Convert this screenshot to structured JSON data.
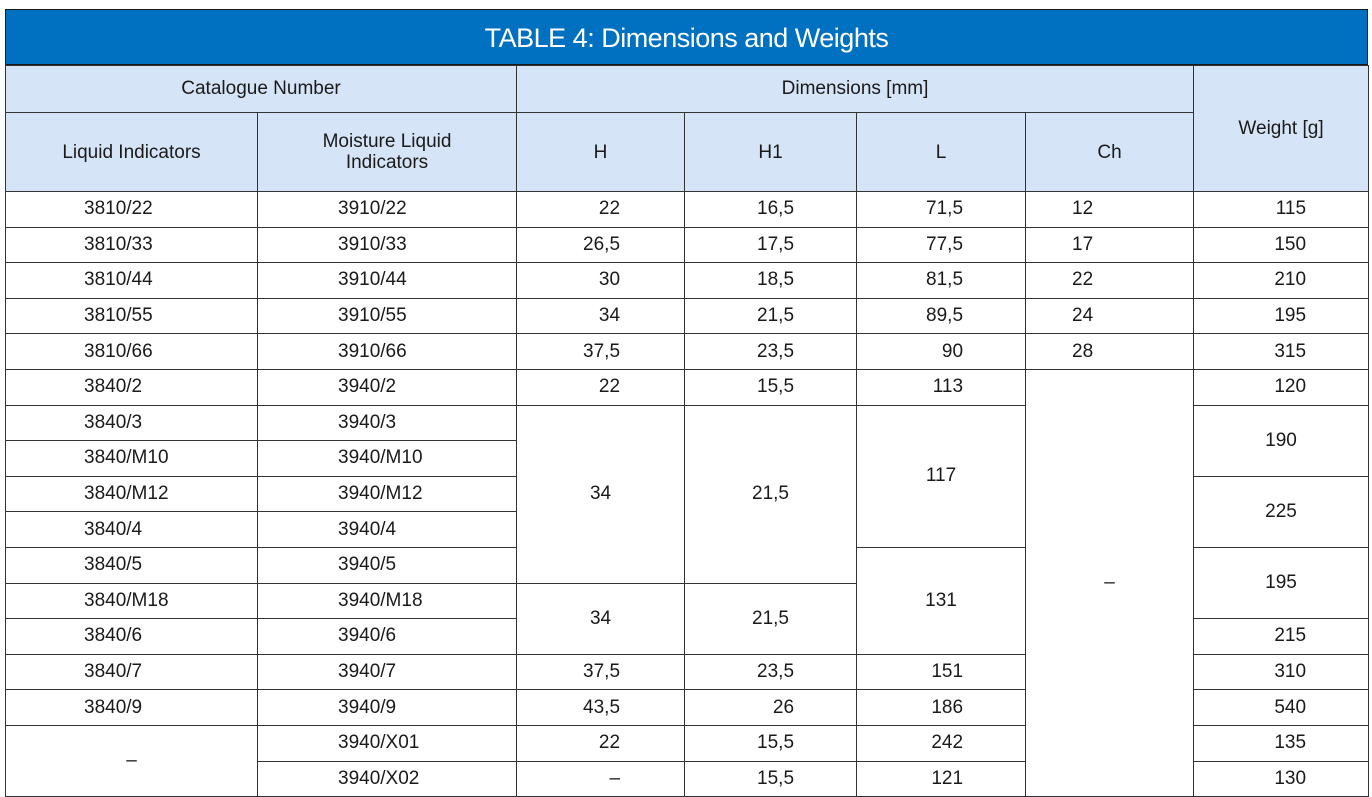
{
  "title": "TABLE 4: Dimensions and Weights",
  "headers": {
    "catalogue": "Catalogue Number",
    "dimensions": "Dimensions [mm]",
    "weight": "Weight [g]",
    "liquid": "Liquid Indicators",
    "moisture": "Moisture Liquid Indicators",
    "h": "H",
    "h1": "H1",
    "l": "L",
    "ch": "Ch"
  },
  "rows": [
    {
      "liquid": "3810/22",
      "moisture": "3910/22",
      "h": "22",
      "h1": "16,5",
      "l": "71,5",
      "ch": "12",
      "weight": "115"
    },
    {
      "liquid": "3810/33",
      "moisture": "3910/33",
      "h": "26,5",
      "h1": "17,5",
      "l": "77,5",
      "ch": "17",
      "weight": "150"
    },
    {
      "liquid": "3810/44",
      "moisture": "3910/44",
      "h": "30",
      "h1": "18,5",
      "l": "81,5",
      "ch": "22",
      "weight": "210"
    },
    {
      "liquid": "3810/55",
      "moisture": "3910/55",
      "h": "34",
      "h1": "21,5",
      "l": "89,5",
      "ch": "24",
      "weight": "195"
    },
    {
      "liquid": "3810/66",
      "moisture": "3910/66",
      "h": "37,5",
      "h1": "23,5",
      "l": "90",
      "ch": "28",
      "weight": "315"
    },
    {
      "liquid": "3840/2",
      "moisture": "3940/2",
      "h": "22",
      "h1": "15,5",
      "l": "113",
      "ch": "–",
      "weight": "120"
    },
    {
      "liquid": "3840/3",
      "moisture": "3940/3",
      "h": "34",
      "h1": "21,5",
      "l": "117",
      "weight": "190"
    },
    {
      "liquid": "3840/M10",
      "moisture": "3940/M10"
    },
    {
      "liquid": "3840/M12",
      "moisture": "3940/M12",
      "weight": "225"
    },
    {
      "liquid": "3840/4",
      "moisture": "3940/4"
    },
    {
      "liquid": "3840/5",
      "moisture": "3940/5",
      "l": "131",
      "weight": "195"
    },
    {
      "liquid": "3840/M18",
      "moisture": "3940/M18",
      "h": "34",
      "h1": "21,5"
    },
    {
      "liquid": "3840/6",
      "moisture": "3940/6",
      "weight": "215"
    },
    {
      "liquid": "3840/7",
      "moisture": "3940/7",
      "h": "37,5",
      "h1": "23,5",
      "l": "151",
      "weight": "310"
    },
    {
      "liquid": "3840/9",
      "moisture": "3940/9",
      "h": "43,5",
      "h1": "26",
      "l": "186",
      "weight": "540"
    },
    {
      "liquid": "–",
      "moisture": "3940/X01",
      "h": "22",
      "h1": "15,5",
      "l": "242",
      "weight": "135"
    },
    {
      "moisture": "3940/X02",
      "h": "–",
      "h1": "15,5",
      "l": "121",
      "weight": "130"
    }
  ]
}
